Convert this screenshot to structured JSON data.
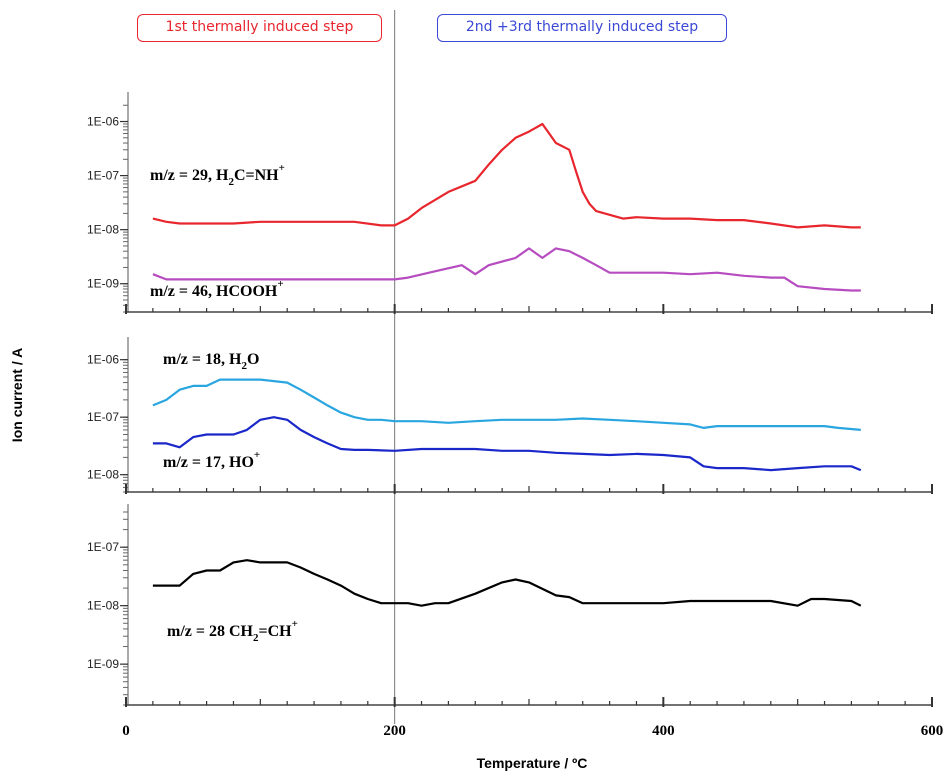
{
  "chart_data": {
    "type": "line",
    "x_axis": {
      "label": "Temperature / ºC",
      "range": [
        0,
        600
      ],
      "ticks": [
        0,
        200,
        400,
        600
      ],
      "tick_labels": [
        "0",
        "200",
        "400",
        "600"
      ]
    },
    "y_axis": {
      "label": "Ion current / A",
      "scale": "log"
    },
    "step_boxes": [
      {
        "text": "1st thermally induced step",
        "color": "#e8262d"
      },
      {
        "text": "2nd +3rd thermally induced step",
        "color": "#3b48d6"
      }
    ],
    "divider_x": 200,
    "panels": [
      {
        "y_ticks": [
          1e-09,
          1e-08,
          1e-07,
          1e-06
        ],
        "y_tick_labels": [
          "1E-09",
          "1E-08",
          "1E-07",
          "1E-06"
        ],
        "y_range": [
          3e-10,
          2.5e-06
        ],
        "series": [
          {
            "color": "#e8262d",
            "label": {
              "main": "m/z = 29, H",
              "sub": "2",
              "rest": "C=NH",
              "sup": "+",
              "trail": ""
            },
            "x": [
              20,
              30,
              40,
              60,
              80,
              100,
              120,
              150,
              170,
              190,
              200,
              210,
              220,
              240,
              260,
              270,
              280,
              290,
              300,
              310,
              315,
              320,
              330,
              335,
              340,
              345,
              350,
              370,
              380,
              400,
              420,
              440,
              460,
              480,
              500,
              520,
              540,
              547
            ],
            "y": [
              1.6e-08,
              1.4e-08,
              1.3e-08,
              1.3e-08,
              1.3e-08,
              1.4e-08,
              1.4e-08,
              1.4e-08,
              1.4e-08,
              1.2e-08,
              1.2e-08,
              1.6e-08,
              2.5e-08,
              5e-08,
              8e-08,
              1.6e-07,
              3e-07,
              5e-07,
              6.5e-07,
              9e-07,
              6e-07,
              4e-07,
              3e-07,
              1.2e-07,
              5e-08,
              3e-08,
              2.2e-08,
              1.6e-08,
              1.7e-08,
              1.6e-08,
              1.6e-08,
              1.5e-08,
              1.5e-08,
              1.3e-08,
              1.1e-08,
              1.2e-08,
              1.1e-08,
              1.1e-08
            ]
          },
          {
            "color": "#b64cc0",
            "label": {
              "main": "m/z = 46,  HCOOH",
              "sub": "",
              "rest": "",
              "sup": "+",
              "trail": ""
            },
            "x": [
              20,
              30,
              40,
              60,
              80,
              100,
              120,
              150,
              170,
              190,
              200,
              210,
              230,
              250,
              260,
              270,
              290,
              300,
              310,
              320,
              330,
              340,
              350,
              360,
              380,
              400,
              420,
              440,
              460,
              480,
              490,
              500,
              520,
              540,
              547
            ],
            "y": [
              1.5e-09,
              1.2e-09,
              1.2e-09,
              1.2e-09,
              1.2e-09,
              1.2e-09,
              1.2e-09,
              1.2e-09,
              1.2e-09,
              1.2e-09,
              1.2e-09,
              1.3e-09,
              1.7e-09,
              2.2e-09,
              1.5e-09,
              2.2e-09,
              3e-09,
              4.5e-09,
              3e-09,
              4.5e-09,
              4e-09,
              3e-09,
              2.2e-09,
              1.6e-09,
              1.6e-09,
              1.6e-09,
              1.5e-09,
              1.6e-09,
              1.4e-09,
              1.3e-09,
              1.3e-09,
              9e-10,
              8e-10,
              7.5e-10,
              7.5e-10
            ]
          }
        ]
      },
      {
        "y_ticks": [
          1e-08,
          1e-07,
          1e-06
        ],
        "y_tick_labels": [
          "1E-08",
          "1E-07",
          "1E-06"
        ],
        "y_range": [
          5e-09,
          1.8e-06
        ],
        "series": [
          {
            "color": "#29a6e0",
            "label": {
              "main": "m/z = 18,  H",
              "sub": "2",
              "rest": "O",
              "sup": "",
              "trail": ""
            },
            "x": [
              20,
              30,
              40,
              50,
              60,
              70,
              80,
              100,
              120,
              130,
              140,
              150,
              160,
              170,
              180,
              190,
              200,
              220,
              240,
              260,
              280,
              300,
              320,
              340,
              360,
              380,
              400,
              420,
              430,
              440,
              460,
              480,
              500,
              520,
              530,
              547
            ],
            "y": [
              1.6e-07,
              2e-07,
              3e-07,
              3.5e-07,
              3.5e-07,
              4.5e-07,
              4.5e-07,
              4.5e-07,
              4e-07,
              3e-07,
              2.2e-07,
              1.6e-07,
              1.2e-07,
              1e-07,
              9e-08,
              9e-08,
              8.5e-08,
              8.5e-08,
              8e-08,
              8.5e-08,
              9e-08,
              9e-08,
              9e-08,
              9.5e-08,
              9e-08,
              8.5e-08,
              8e-08,
              7.5e-08,
              6.5e-08,
              7e-08,
              7e-08,
              7e-08,
              7e-08,
              7e-08,
              6.5e-08,
              6e-08
            ]
          },
          {
            "color": "#1a27c9",
            "label": {
              "main": "m/z = 17,  HO",
              "sub": "",
              "rest": "",
              "sup": "+",
              "trail": ""
            },
            "x": [
              20,
              30,
              40,
              50,
              60,
              80,
              90,
              100,
              110,
              120,
              130,
              140,
              150,
              160,
              170,
              180,
              200,
              220,
              240,
              260,
              280,
              300,
              320,
              340,
              360,
              380,
              400,
              420,
              430,
              440,
              460,
              480,
              500,
              520,
              540,
              547
            ],
            "y": [
              3.5e-08,
              3.5e-08,
              3e-08,
              4.5e-08,
              5e-08,
              5e-08,
              6e-08,
              9e-08,
              1e-07,
              9e-08,
              6e-08,
              4.5e-08,
              3.5e-08,
              2.8e-08,
              2.7e-08,
              2.7e-08,
              2.6e-08,
              2.8e-08,
              2.8e-08,
              2.8e-08,
              2.6e-08,
              2.6e-08,
              2.4e-08,
              2.3e-08,
              2.2e-08,
              2.3e-08,
              2.2e-08,
              2e-08,
              1.4e-08,
              1.3e-08,
              1.3e-08,
              1.2e-08,
              1.3e-08,
              1.4e-08,
              1.4e-08,
              1.2e-08
            ]
          }
        ]
      },
      {
        "y_ticks": [
          1e-09,
          1e-08,
          1e-07
        ],
        "y_tick_labels": [
          "1E-09",
          "1E-08",
          "1E-07"
        ],
        "y_range": [
          2e-10,
          4e-07
        ],
        "series": [
          {
            "color": "#000000",
            "label": {
              "main": "m/z = 28  CH",
              "sub": "2",
              "rest": "=CH",
              "sup": "+",
              "trail": ""
            },
            "x": [
              20,
              30,
              40,
              50,
              60,
              70,
              80,
              90,
              100,
              120,
              130,
              140,
              150,
              160,
              170,
              180,
              190,
              200,
              210,
              220,
              230,
              240,
              260,
              280,
              290,
              300,
              320,
              330,
              340,
              360,
              380,
              400,
              420,
              440,
              460,
              480,
              500,
              510,
              520,
              540,
              547
            ],
            "y": [
              2.2e-08,
              2.2e-08,
              2.2e-08,
              3.5e-08,
              4e-08,
              4e-08,
              5.5e-08,
              6e-08,
              5.5e-08,
              5.5e-08,
              4.5e-08,
              3.5e-08,
              2.8e-08,
              2.2e-08,
              1.6e-08,
              1.3e-08,
              1.1e-08,
              1.1e-08,
              1.1e-08,
              1e-08,
              1.1e-08,
              1.1e-08,
              1.6e-08,
              2.5e-08,
              2.8e-08,
              2.5e-08,
              1.5e-08,
              1.4e-08,
              1.1e-08,
              1.1e-08,
              1.1e-08,
              1.1e-08,
              1.2e-08,
              1.2e-08,
              1.2e-08,
              1.2e-08,
              1e-08,
              1.3e-08,
              1.3e-08,
              1.2e-08,
              1e-08
            ]
          }
        ]
      }
    ]
  }
}
